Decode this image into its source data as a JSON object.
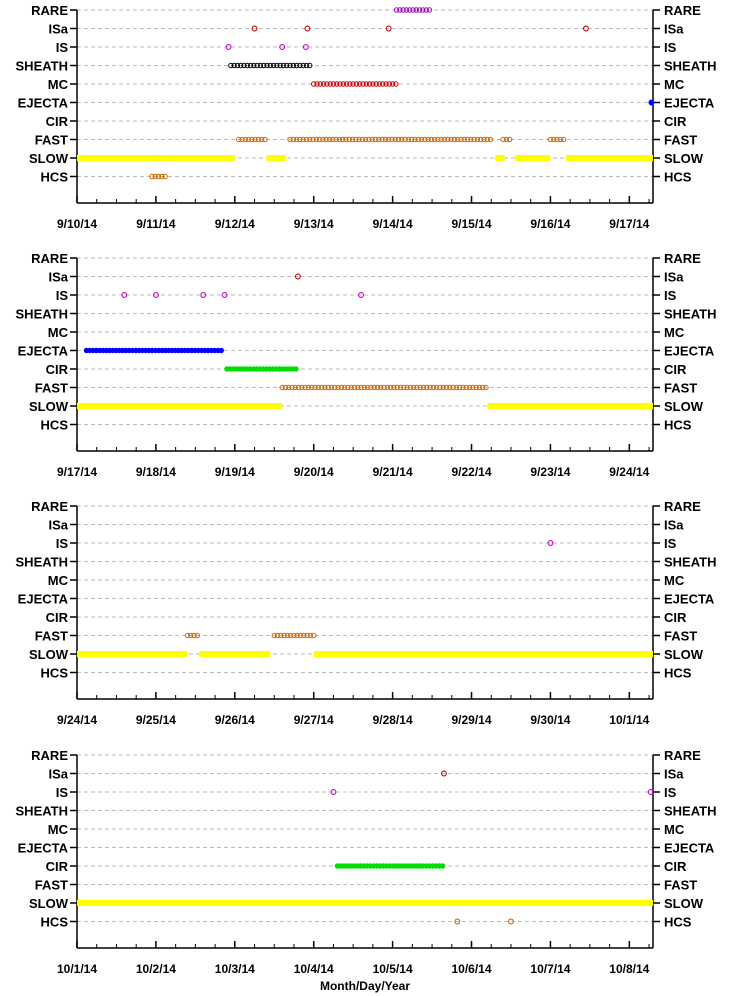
{
  "chart_data": {
    "type": "scatter",
    "xlabel": "Month/Day/Year",
    "categories": [
      "RARE",
      "ISa",
      "IS",
      "SHEATH",
      "MC",
      "EJECTA",
      "CIR",
      "FAST",
      "SLOW",
      "HCS"
    ],
    "colors": {
      "RARE": "#a000c0",
      "ISa": "#cc0000",
      "IS": "#cc00cc",
      "SHEATH": "#000000",
      "MC": "#cc0000",
      "EJECTA": "#0000ff",
      "CIR": "#00dd00",
      "FAST": "#cc6600",
      "SLOW": "#ffff00",
      "HCS": "#cc6600",
      "grid": "#bbbbbb"
    },
    "panels": [
      {
        "xlim": [
          0,
          7.3
        ],
        "ticks": [
          "9/10/14",
          "9/11/14",
          "9/12/14",
          "9/13/14",
          "9/14/14",
          "9/15/14",
          "9/16/14",
          "9/17/14"
        ],
        "segments": [
          {
            "cat": "RARE",
            "start": 4.05,
            "end": 4.5
          },
          {
            "cat": "SHEATH",
            "start": 1.95,
            "end": 2.95
          },
          {
            "cat": "MC",
            "start": 3.0,
            "end": 4.05
          },
          {
            "cat": "FAST",
            "start": 2.05,
            "end": 2.4
          },
          {
            "cat": "FAST",
            "start": 2.7,
            "end": 5.25
          },
          {
            "cat": "FAST",
            "start": 5.4,
            "end": 5.5
          },
          {
            "cat": "FAST",
            "start": 6.0,
            "end": 6.2
          },
          {
            "cat": "SLOW",
            "start": 0.0,
            "end": 2.0
          },
          {
            "cat": "SLOW",
            "start": 2.4,
            "end": 2.65
          },
          {
            "cat": "SLOW",
            "start": 5.3,
            "end": 5.42
          },
          {
            "cat": "SLOW",
            "start": 5.55,
            "end": 6.0
          },
          {
            "cat": "SLOW",
            "start": 6.2,
            "end": 7.3
          },
          {
            "cat": "HCS",
            "start": 0.95,
            "end": 1.15
          }
        ],
        "points": [
          {
            "cat": "ISa",
            "x": 2.25
          },
          {
            "cat": "ISa",
            "x": 2.92
          },
          {
            "cat": "ISa",
            "x": 3.95
          },
          {
            "cat": "ISa",
            "x": 6.45
          },
          {
            "cat": "IS",
            "x": 1.92
          },
          {
            "cat": "IS",
            "x": 2.6
          },
          {
            "cat": "IS",
            "x": 2.9
          },
          {
            "cat": "EJECTA",
            "x": 7.28
          }
        ]
      },
      {
        "xlim": [
          0,
          7.3
        ],
        "ticks": [
          "9/17/14",
          "9/18/14",
          "9/19/14",
          "9/20/14",
          "9/21/14",
          "9/22/14",
          "9/23/14",
          "9/24/14"
        ],
        "segments": [
          {
            "cat": "EJECTA",
            "start": 0.12,
            "end": 1.85
          },
          {
            "cat": "CIR",
            "start": 1.9,
            "end": 2.8
          },
          {
            "cat": "FAST",
            "start": 2.6,
            "end": 5.2
          },
          {
            "cat": "SLOW",
            "start": 0.0,
            "end": 2.6
          },
          {
            "cat": "SLOW",
            "start": 5.2,
            "end": 7.3
          }
        ],
        "points": [
          {
            "cat": "ISa",
            "x": 2.8
          },
          {
            "cat": "IS",
            "x": 0.6
          },
          {
            "cat": "IS",
            "x": 1.0
          },
          {
            "cat": "IS",
            "x": 1.6
          },
          {
            "cat": "IS",
            "x": 1.87
          },
          {
            "cat": "IS",
            "x": 3.6
          }
        ]
      },
      {
        "xlim": [
          0,
          7.3
        ],
        "ticks": [
          "9/24/14",
          "9/25/14",
          "9/26/14",
          "9/27/14",
          "9/28/14",
          "9/29/14",
          "9/30/14",
          "10/1/14"
        ],
        "segments": [
          {
            "cat": "FAST",
            "start": 1.4,
            "end": 1.55
          },
          {
            "cat": "FAST",
            "start": 2.5,
            "end": 3.0
          },
          {
            "cat": "SLOW",
            "start": 0.0,
            "end": 1.4
          },
          {
            "cat": "SLOW",
            "start": 1.55,
            "end": 2.45
          },
          {
            "cat": "SLOW",
            "start": 3.0,
            "end": 7.3
          }
        ],
        "points": [
          {
            "cat": "IS",
            "x": 6.0
          }
        ]
      },
      {
        "xlim": [
          0,
          7.3
        ],
        "ticks": [
          "10/1/14",
          "10/2/14",
          "10/3/14",
          "10/4/14",
          "10/5/14",
          "10/6/14",
          "10/7/14",
          "10/8/14"
        ],
        "segments": [
          {
            "cat": "CIR",
            "start": 3.3,
            "end": 4.65
          },
          {
            "cat": "SLOW",
            "start": 0.0,
            "end": 7.3
          }
        ],
        "points": [
          {
            "cat": "ISa",
            "x": 4.65
          },
          {
            "cat": "IS",
            "x": 3.25
          },
          {
            "cat": "IS",
            "x": 7.27
          },
          {
            "cat": "HCS",
            "x": 4.82
          },
          {
            "cat": "HCS",
            "x": 5.5
          }
        ]
      }
    ]
  }
}
